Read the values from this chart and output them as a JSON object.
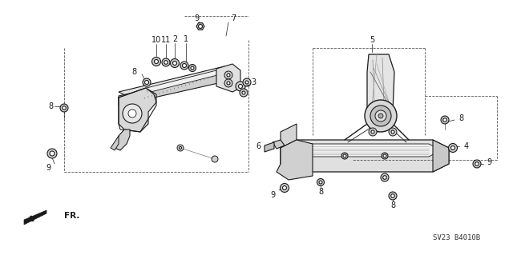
{
  "bg_color": "#ffffff",
  "line_color": "#1a1a1a",
  "fig_width": 6.4,
  "fig_height": 3.19,
  "dpi": 100,
  "diagram_code": "SV23 B4010B"
}
